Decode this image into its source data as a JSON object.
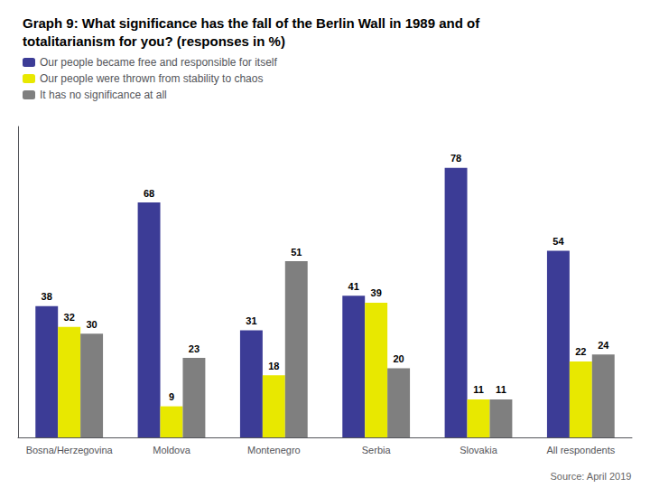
{
  "chart_data": {
    "type": "bar",
    "title": "Graph 9: What significance has the fall of the Berlin Wall in 1989 and of\ntotalitarianism for you? (responses in %)",
    "categories": [
      "Bosna/Herzegovina",
      "Moldova",
      "Montenegro",
      "Serbia",
      "Slovakia",
      "All respondents"
    ],
    "series": [
      {
        "name": "Our people became free and responsible for itself",
        "color": "#3c3c96",
        "values": [
          38,
          68,
          31,
          41,
          78,
          54
        ]
      },
      {
        "name": "Our people were thrown from stability to chaos",
        "color": "#e8e800",
        "values": [
          32,
          9,
          18,
          39,
          11,
          22
        ]
      },
      {
        "name": "It has no significance at all",
        "color": "#7f7f7f",
        "values": [
          30,
          23,
          51,
          20,
          11,
          24
        ]
      }
    ],
    "ylim": [
      0,
      90
    ],
    "tick_labels": "x",
    "grid": false,
    "legend": "upper left",
    "data_labels": true,
    "annotations": [
      "Source: April 2019"
    ]
  }
}
